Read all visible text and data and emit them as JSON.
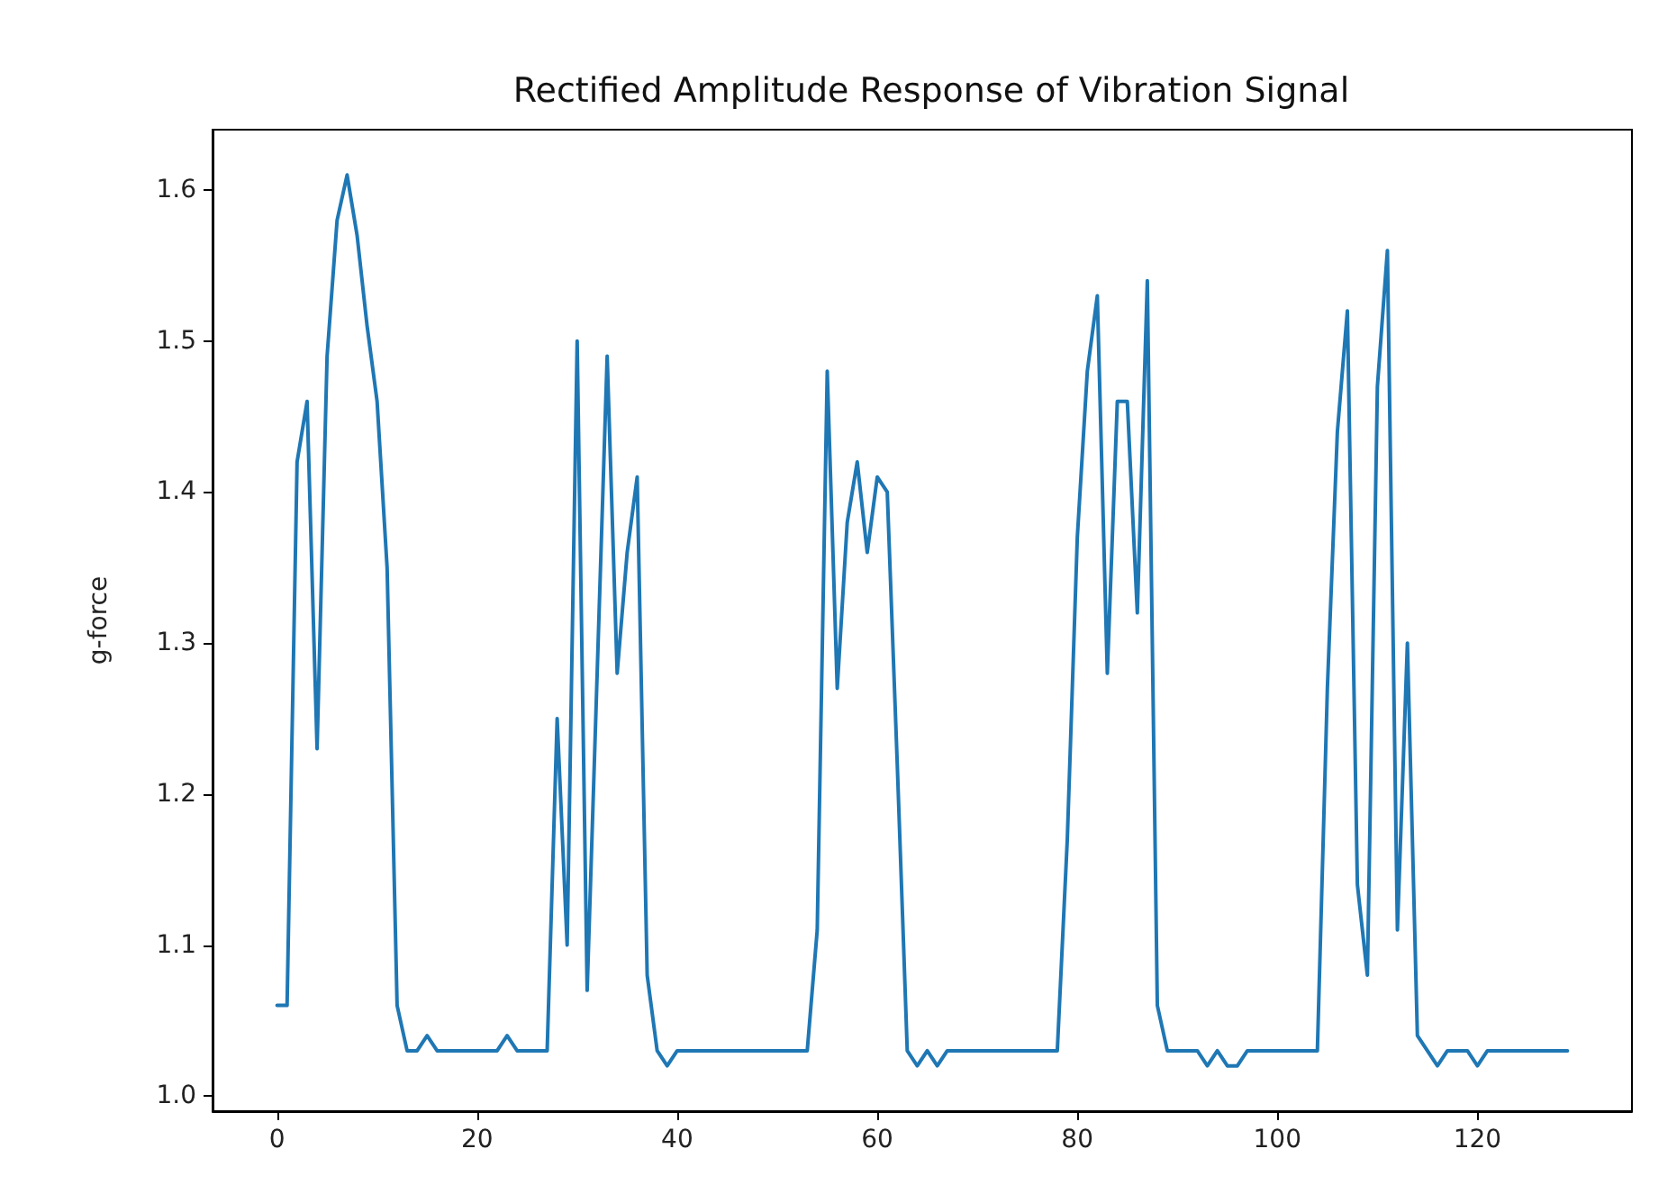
{
  "chart_data": {
    "type": "line",
    "title": "Rectified Amplitude Response of Vibration Signal",
    "ylabel": "g-force",
    "x": [
      0,
      1,
      2,
      3,
      4,
      5,
      6,
      7,
      8,
      9,
      10,
      11,
      12,
      13,
      14,
      15,
      16,
      17,
      18,
      19,
      20,
      21,
      22,
      23,
      24,
      25,
      26,
      27,
      28,
      29,
      30,
      31,
      32,
      33,
      34,
      35,
      36,
      37,
      38,
      39,
      40,
      41,
      42,
      43,
      44,
      45,
      46,
      47,
      48,
      49,
      50,
      51,
      52,
      53,
      54,
      55,
      56,
      57,
      58,
      59,
      60,
      61,
      62,
      63,
      64,
      65,
      66,
      67,
      68,
      69,
      70,
      71,
      72,
      73,
      74,
      75,
      76,
      77,
      78,
      79,
      80,
      81,
      82,
      83,
      84,
      85,
      86,
      87,
      88,
      89,
      90,
      91,
      92,
      93,
      94,
      95,
      96,
      97,
      98,
      99,
      100,
      101,
      102,
      103,
      104,
      105,
      106,
      107,
      108,
      109,
      110,
      111,
      112,
      113,
      114,
      115,
      116,
      117,
      118,
      119,
      120,
      121,
      122,
      123,
      124,
      125,
      126,
      127,
      128,
      129
    ],
    "series": [
      {
        "color": "#1f77b4",
        "values": [
          1.06,
          1.06,
          1.42,
          1.46,
          1.23,
          1.49,
          1.58,
          1.61,
          1.57,
          1.51,
          1.46,
          1.35,
          1.06,
          1.03,
          1.03,
          1.04,
          1.03,
          1.03,
          1.03,
          1.03,
          1.03,
          1.03,
          1.03,
          1.04,
          1.03,
          1.03,
          1.03,
          1.03,
          1.25,
          1.1,
          1.5,
          1.07,
          1.28,
          1.49,
          1.28,
          1.36,
          1.41,
          1.08,
          1.03,
          1.02,
          1.03,
          1.03,
          1.03,
          1.03,
          1.03,
          1.03,
          1.03,
          1.03,
          1.03,
          1.03,
          1.03,
          1.03,
          1.03,
          1.03,
          1.11,
          1.48,
          1.27,
          1.38,
          1.42,
          1.36,
          1.41,
          1.4,
          1.22,
          1.03,
          1.02,
          1.03,
          1.02,
          1.03,
          1.03,
          1.03,
          1.03,
          1.03,
          1.03,
          1.03,
          1.03,
          1.03,
          1.03,
          1.03,
          1.03,
          1.17,
          1.37,
          1.48,
          1.53,
          1.28,
          1.46,
          1.46,
          1.32,
          1.54,
          1.06,
          1.03,
          1.03,
          1.03,
          1.03,
          1.02,
          1.03,
          1.02,
          1.02,
          1.03,
          1.03,
          1.03,
          1.03,
          1.03,
          1.03,
          1.03,
          1.03,
          1.27,
          1.44,
          1.52,
          1.14,
          1.08,
          1.47,
          1.56,
          1.11,
          1.3,
          1.04,
          1.03,
          1.02,
          1.03,
          1.03,
          1.03,
          1.02,
          1.03,
          1.03,
          1.03,
          1.03,
          1.03,
          1.03,
          1.03,
          1.03,
          1.03
        ]
      }
    ],
    "xlim": [
      -6.45,
      135.45
    ],
    "xticks": [
      0,
      20,
      40,
      60,
      80,
      100,
      120
    ],
    "ylim": [
      0.99,
      1.64
    ],
    "yticks": [
      {
        "value": 1.0,
        "label": "1.0"
      },
      1.1,
      1.2,
      1.3,
      1.4,
      1.5,
      1.6
    ],
    "grid": false,
    "marker": "none",
    "line_style": "solid"
  }
}
